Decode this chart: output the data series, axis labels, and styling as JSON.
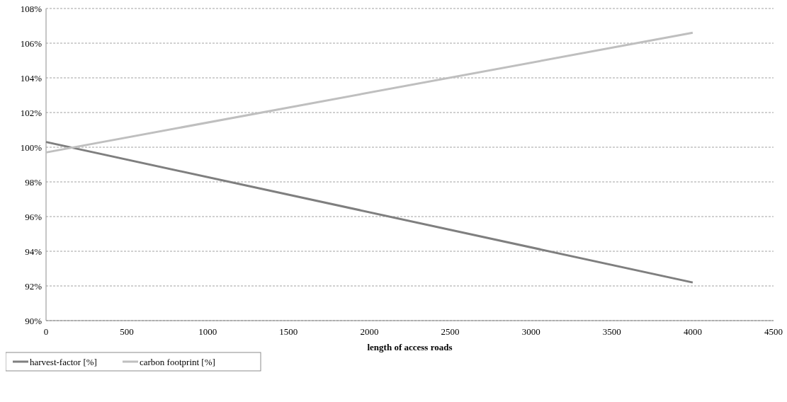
{
  "chart_data": {
    "type": "line",
    "xlabel": "length of access roads",
    "x": [
      0,
      4000
    ],
    "series": [
      {
        "name": "harvest-factor [%]",
        "color": "#7f7f7f",
        "values": [
          100.3,
          92.2
        ]
      },
      {
        "name": "carbon footprint [%]",
        "color": "#bfbfbf",
        "values": [
          99.7,
          106.6
        ]
      }
    ],
    "xlim": [
      0,
      4500
    ],
    "xticks": [
      0,
      500,
      1000,
      1500,
      2000,
      2500,
      3000,
      3500,
      4000,
      4500
    ],
    "ylim": [
      90,
      108
    ],
    "yticks": [
      {
        "value": 90,
        "label": "90%"
      },
      {
        "value": 92,
        "label": "92%"
      },
      {
        "value": 94,
        "label": "94%"
      },
      {
        "value": 96,
        "label": "96%"
      },
      {
        "value": 98,
        "label": "98%"
      },
      {
        "value": 100,
        "label": "100%"
      },
      {
        "value": 102,
        "label": "102%"
      },
      {
        "value": 104,
        "label": "104%"
      },
      {
        "value": 106,
        "label": "106%"
      },
      {
        "value": 108,
        "label": "108%"
      }
    ],
    "grid": "y",
    "legend": "bottom left",
    "marker": "none",
    "line_style": "solid"
  }
}
